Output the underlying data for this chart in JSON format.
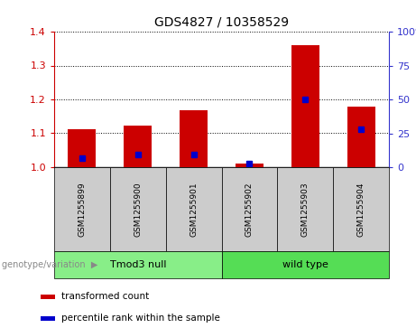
{
  "title": "GDS4827 / 10358529",
  "samples": [
    "GSM1255899",
    "GSM1255900",
    "GSM1255901",
    "GSM1255902",
    "GSM1255903",
    "GSM1255904"
  ],
  "transformed_counts": [
    1.112,
    1.122,
    1.168,
    1.01,
    1.36,
    1.178
  ],
  "percentile_ranks": [
    6.5,
    9.2,
    9.2,
    2.5,
    50.0,
    28.0
  ],
  "bar_color": "#cc0000",
  "dot_color": "#0000cc",
  "ylim_left": [
    1.0,
    1.4
  ],
  "ylim_right": [
    0,
    100
  ],
  "yticks_left": [
    1.0,
    1.1,
    1.2,
    1.3,
    1.4
  ],
  "yticks_right": [
    0,
    25,
    50,
    75,
    100
  ],
  "ylabel_left_color": "#cc0000",
  "ylabel_right_color": "#3333cc",
  "groups": [
    {
      "label": "Tmod3 null",
      "samples": [
        0,
        1,
        2
      ],
      "color": "#88ee88"
    },
    {
      "label": "wild type",
      "samples": [
        3,
        4,
        5
      ],
      "color": "#55dd55"
    }
  ],
  "group_label_prefix": "genotype/variation",
  "legend_items": [
    {
      "label": "transformed count",
      "color": "#cc0000"
    },
    {
      "label": "percentile rank within the sample",
      "color": "#0000cc"
    }
  ],
  "bar_width": 0.5,
  "sample_box_color": "#cccccc",
  "background_color": "#ffffff",
  "plot_bg_color": "#ffffff",
  "border_color": "#000000"
}
